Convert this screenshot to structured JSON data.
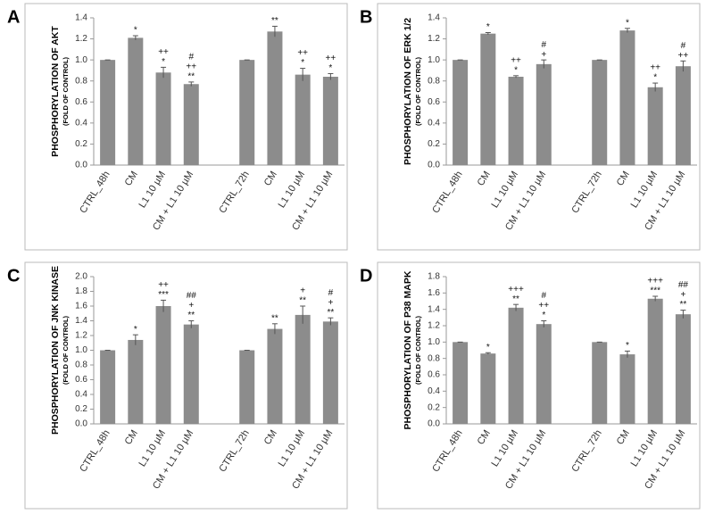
{
  "chart_data": [
    {
      "type": "bar",
      "panel": "A",
      "y_label": "PHOSPHORYLATION OF AKT",
      "y_sublabel": "(FOLD OF CONTROL)",
      "color": "#8c8c8c",
      "categories": [
        "CTRL_48h",
        "CM",
        "L1 10 µM",
        "CM + L1 10 µM",
        null,
        "CTRL_72h",
        "CM",
        "L1 10 µM",
        "CM + L1 10 µM"
      ],
      "values": [
        1.0,
        1.21,
        0.88,
        0.77,
        null,
        1.0,
        1.27,
        0.86,
        0.84
      ],
      "errors": [
        0,
        0.02,
        0.05,
        0.02,
        null,
        0,
        0.05,
        0.06,
        0.03
      ],
      "annotations": [
        [],
        [
          "*"
        ],
        [
          "++",
          "*"
        ],
        [
          "#",
          "++",
          "**"
        ],
        [],
        [],
        [
          "**"
        ],
        [
          "++",
          "*"
        ],
        [
          "++",
          "*"
        ]
      ],
      "ylim": [
        0,
        1.4
      ],
      "yticks": [
        {
          "value": 0,
          "label": "0.0"
        },
        0.2,
        0.4,
        0.6,
        0.8,
        {
          "value": 1,
          "label": "1.0"
        },
        1.2,
        1.4
      ]
    },
    {
      "type": "bar",
      "panel": "B",
      "y_label": "PHOSPHORYLATION OF ERK 1/2",
      "y_sublabel": "(FOLD OF CONTROL)",
      "color": "#8c8c8c",
      "categories": [
        "CTRL_48h",
        "CM",
        "L1 10 µM",
        "CM + L1 10 µM",
        null,
        "CTRL_72h",
        "CM",
        "L1 10 µM",
        "CM + L1 10 µM"
      ],
      "values": [
        1.0,
        1.25,
        0.84,
        0.96,
        null,
        1.0,
        1.28,
        0.74,
        0.94
      ],
      "errors": [
        0,
        0.01,
        0.01,
        0.04,
        null,
        0,
        0.02,
        0.04,
        0.05
      ],
      "annotations": [
        [],
        [
          "*"
        ],
        [
          "++",
          "*"
        ],
        [
          "#",
          "+"
        ],
        [],
        [],
        [
          "*"
        ],
        [
          "++",
          "*"
        ],
        [
          "#",
          "++"
        ]
      ],
      "ylim": [
        0,
        1.4
      ],
      "yticks": [
        {
          "value": 0,
          "label": "0.0"
        },
        0.2,
        0.4,
        0.6,
        0.8,
        {
          "value": 1,
          "label": "1.0"
        },
        1.2,
        1.4
      ]
    },
    {
      "type": "bar",
      "panel": "C",
      "y_label": "PHOSPHORYLATION OF JNK KINASE",
      "y_sublabel": "(FOLD OF CONTROL)",
      "color": "#8c8c8c",
      "categories": [
        "CTRL_48h",
        "CM",
        "L1 10 µM",
        "CM + L1 10 µM",
        null,
        "CTRL_72h",
        "CM",
        "L1 10 µM",
        "CM + L1 10 µM"
      ],
      "values": [
        1.0,
        1.14,
        1.6,
        1.35,
        null,
        1.0,
        1.29,
        1.48,
        1.39
      ],
      "errors": [
        0,
        0.07,
        0.08,
        0.05,
        null,
        0,
        0.07,
        0.12,
        0.05
      ],
      "annotations": [
        [],
        [
          "*"
        ],
        [
          "++",
          "***"
        ],
        [
          "##",
          "+",
          "**"
        ],
        [],
        [],
        [
          "**"
        ],
        [
          "+",
          "**"
        ],
        [
          "#",
          "+",
          "**"
        ]
      ],
      "ylim": [
        0,
        2
      ],
      "yticks": [
        {
          "value": 0,
          "label": "0.0"
        },
        0.2,
        0.4,
        0.6,
        0.8,
        {
          "value": 1,
          "label": "1.0"
        },
        1.2,
        1.4,
        1.6,
        1.8,
        {
          "value": 2,
          "label": "2.0"
        }
      ]
    },
    {
      "type": "bar",
      "panel": "D",
      "y_label": "PHOSPHORYLATION OF P38 MAPK",
      "y_sublabel": "(FOLD OF CONTROL)",
      "color": "#8c8c8c",
      "categories": [
        "CTRL_48h",
        "CM",
        "L1 10 µM",
        "CM + L1 10 µM",
        null,
        "CTRL_72h",
        "CM",
        "L1 10 µM",
        "CM + L1 10 µM"
      ],
      "values": [
        1.0,
        0.86,
        1.42,
        1.22,
        null,
        1.0,
        0.85,
        1.53,
        1.34
      ],
      "errors": [
        0,
        0.01,
        0.04,
        0.04,
        null,
        0,
        0.04,
        0.03,
        0.05
      ],
      "annotations": [
        [],
        [
          "*"
        ],
        [
          "+++",
          "**"
        ],
        [
          "#",
          "++",
          "*"
        ],
        [],
        [],
        [
          "*"
        ],
        [
          "+++",
          "***"
        ],
        [
          "##",
          "+",
          "**"
        ]
      ],
      "ylim": [
        0,
        1.8
      ],
      "yticks": [
        {
          "value": 0,
          "label": "0.0"
        },
        0.2,
        0.4,
        0.6,
        0.8,
        {
          "value": 1,
          "label": "1.0"
        },
        1.2,
        1.4,
        1.6,
        1.8
      ]
    }
  ]
}
